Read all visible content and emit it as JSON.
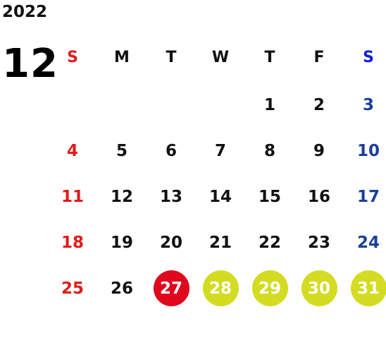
{
  "year": "2022",
  "month": "12",
  "weekdays": [
    "S",
    "M",
    "T",
    "W",
    "T",
    "F",
    "S"
  ],
  "weeks": [
    [
      "",
      "",
      "",
      "",
      "1",
      "2",
      "3"
    ],
    [
      "4",
      "5",
      "6",
      "7",
      "8",
      "9",
      "10"
    ],
    [
      "11",
      "12",
      "13",
      "14",
      "15",
      "16",
      "17"
    ],
    [
      "18",
      "19",
      "20",
      "21",
      "22",
      "23",
      "24"
    ],
    [
      "25",
      "26",
      "27",
      "28",
      "29",
      "30",
      "31"
    ]
  ],
  "colors": {
    "sunday": "#e21a1a",
    "saturday": "#1a3f9a",
    "saturday_header": "#1020d6",
    "highlight_red": "#e0081c",
    "highlight_lime": "#d3dc22"
  },
  "highlights": {
    "red": [
      "27"
    ],
    "lime": [
      "28",
      "29",
      "30",
      "31"
    ]
  }
}
